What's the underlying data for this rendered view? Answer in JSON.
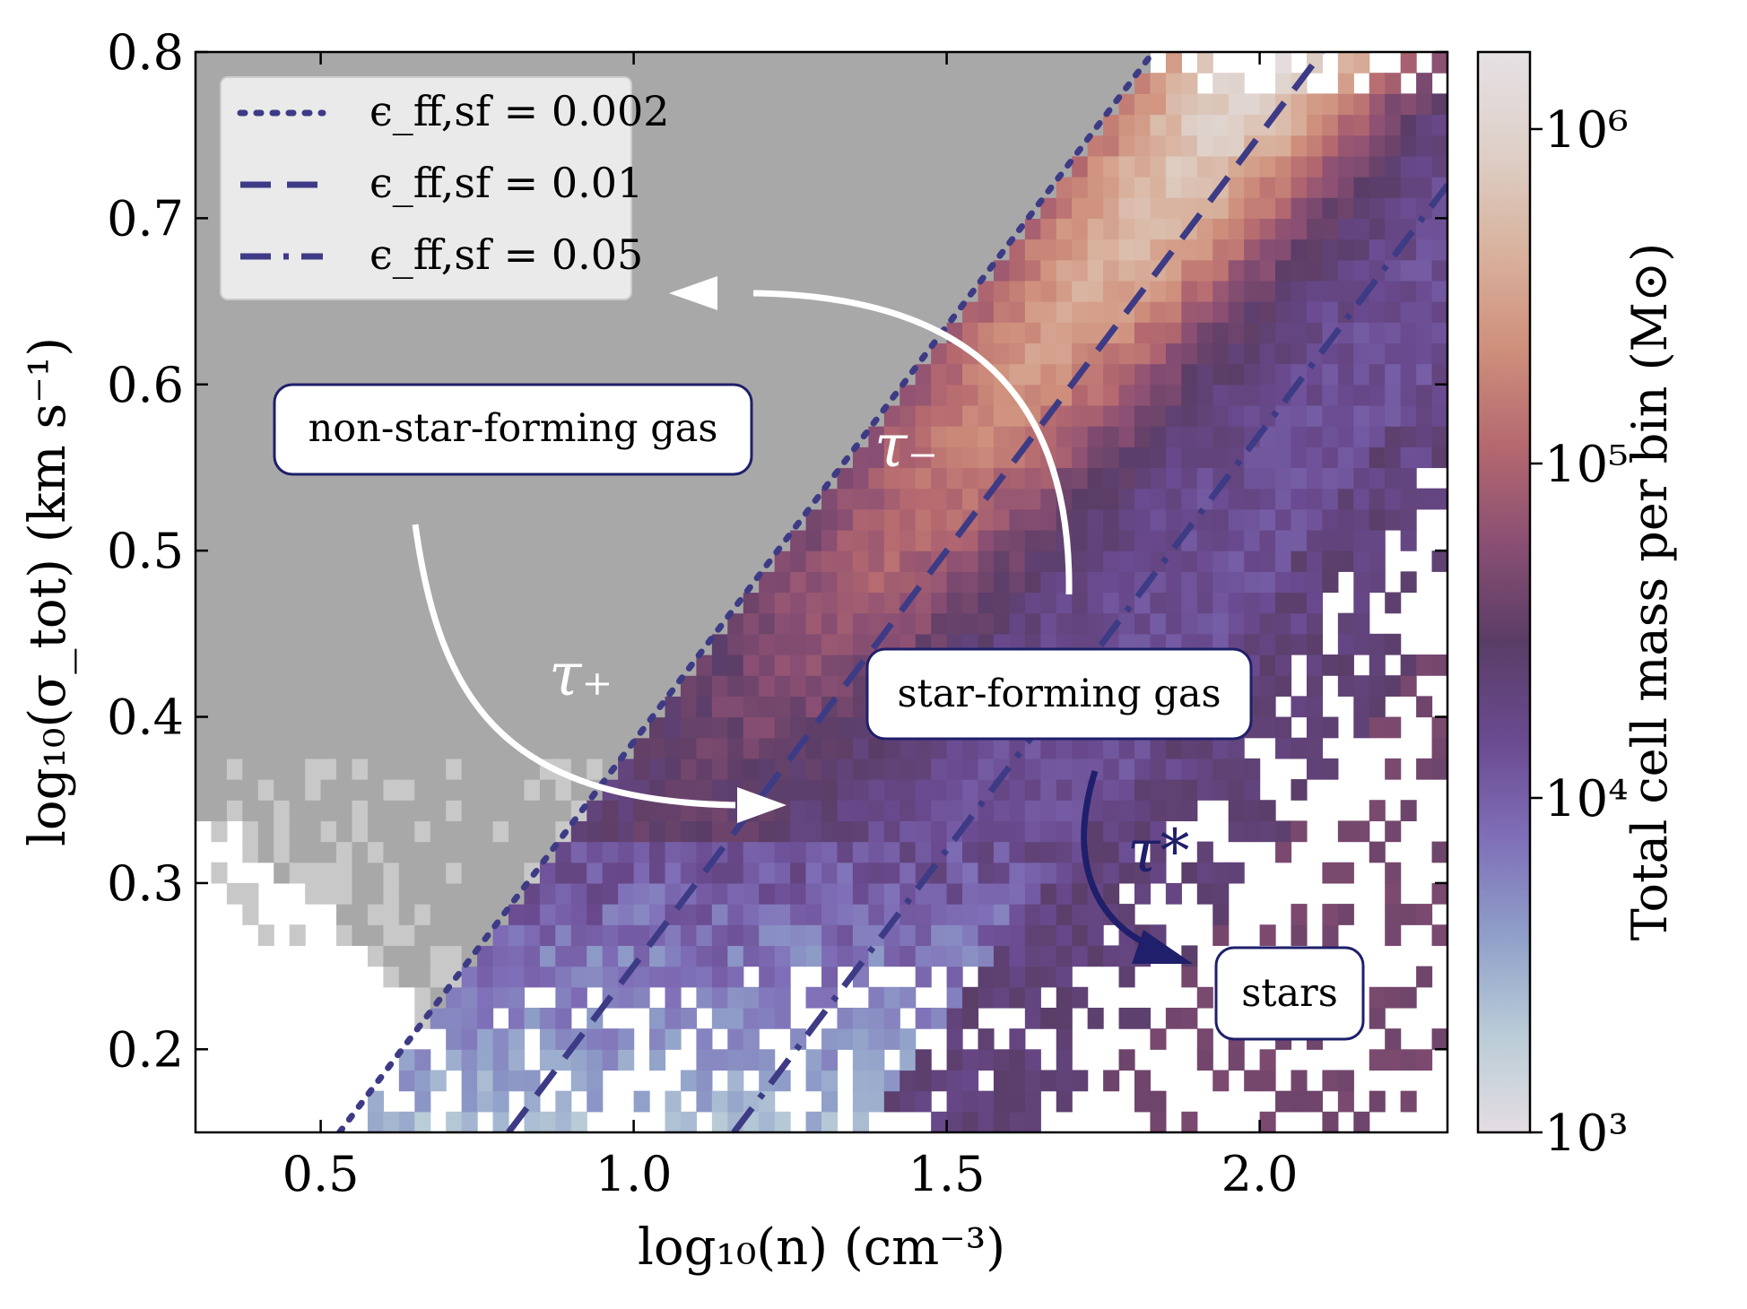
{
  "chart_data": {
    "type": "heatmap",
    "xlabel": "log₁₀(n) (cm⁻³)",
    "ylabel": "log₁₀(σ_tot) (km s⁻¹)",
    "xlim": [
      0.3,
      2.3
    ],
    "ylim": [
      0.15,
      0.8
    ],
    "x_ticks": [
      "0.5",
      "1.0",
      "1.5",
      "2.0"
    ],
    "y_ticks": [
      "0.2",
      "0.3",
      "0.4",
      "0.5",
      "0.6",
      "0.7",
      "0.8"
    ],
    "grid": false,
    "colorbar": {
      "label": "Total cell mass per bin (M⊙)",
      "scale": "log",
      "range": [
        1000,
        1700000
      ],
      "ticks": [
        "10³",
        "10⁴",
        "10⁵",
        "10⁶"
      ],
      "tick_values": [
        1000,
        10000,
        100000,
        1000000
      ],
      "stops": [
        "#e4dde2",
        "#b9ccd7",
        "#8f9fc9",
        "#7f6fb8",
        "#6a4a90",
        "#5a3d66",
        "#8a4f73",
        "#b5696f",
        "#cf907c",
        "#d9b39f",
        "#ded0c8",
        "#e6e1e5"
      ]
    },
    "greyed_region_color": "#a8a8a8",
    "lines": [
      {
        "label": "ϵ_ff,sf = 0.002",
        "style": "dotted",
        "x": [
          0.53,
          1.83
        ],
        "y": [
          0.15,
          0.8
        ]
      },
      {
        "label": "ϵ_ff,sf = 0.01",
        "style": "dashed",
        "x": [
          0.8,
          2.1
        ],
        "y": [
          0.15,
          0.8
        ]
      },
      {
        "label": "ϵ_ff,sf = 0.05",
        "style": "dashdot",
        "x": [
          1.16,
          2.3
        ],
        "y": [
          0.15,
          0.72
        ]
      }
    ],
    "line_color": "#3d3b85",
    "legend_location": "upper left",
    "annotations": {
      "non_sf_label": "non-star-forming gas",
      "sf_label": "star-forming gas",
      "stars_label": "stars",
      "tau_minus": "τ₋",
      "tau_plus": "τ₊",
      "tau_star": "τ*"
    }
  }
}
